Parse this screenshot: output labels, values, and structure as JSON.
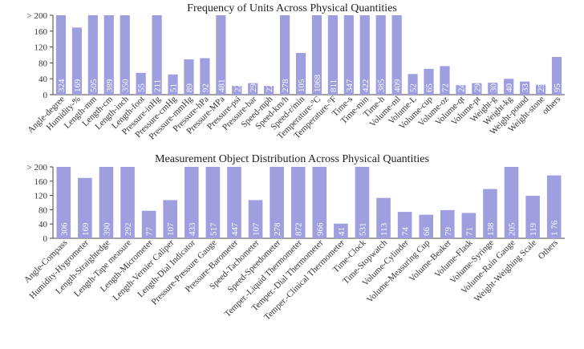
{
  "chart_data": [
    {
      "type": "bar",
      "title": "Frequency of Units Across Physical Quantities",
      "xlabel": "",
      "ylabel": "",
      "ylim": [
        0,
        200
      ],
      "yticks": [
        "0",
        "40",
        "80",
        "120",
        "160",
        "> 200"
      ],
      "grid": false,
      "color": "#9f9fe0",
      "categories": [
        "Angle-degree",
        "Humidity-%",
        "Length-mm",
        "Length-cm",
        "Length-inch",
        "Length-foot",
        "Pressure-inHg",
        "Pressure-cmHg",
        "Pressure-mmHg",
        "Pressure-hPa",
        "Pressure-MPa",
        "Pressure-psi",
        "Pressure-bar",
        "Speed-mph",
        "Speed-km/h",
        "Speed-r/min",
        "Temperature-°C",
        "Temperature-°F",
        "Time-s",
        "Time-min",
        "Time-h",
        "Volume-ml",
        "Volume-L",
        "Volume-cup",
        "Volume-oz",
        "Volume-qt",
        "Volume-pt",
        "Weight-g",
        "Weight-kg",
        "Weight-pound",
        "Weight-stone",
        "others"
      ],
      "values": [
        324,
        169,
        505,
        389,
        350,
        55,
        211,
        51,
        89,
        92,
        481,
        22,
        29,
        22,
        278,
        105,
        1068,
        811,
        347,
        422,
        385,
        409,
        52,
        65,
        72,
        24,
        29,
        30,
        40,
        33,
        25,
        95
      ],
      "value_labels": [
        "324",
        "169",
        "505",
        "389",
        "350",
        "55",
        "211",
        "51",
        "89",
        "92",
        "481",
        "22",
        "29",
        "22",
        "278",
        "105",
        "1068",
        "811",
        "347",
        "422",
        "385",
        "409",
        "52",
        "65",
        "72",
        "24",
        "29",
        "30",
        "40",
        "33",
        "25",
        "95"
      ]
    },
    {
      "type": "bar",
      "title": "Measurement Object Distribution Across Physical Quantities",
      "xlabel": "",
      "ylabel": "",
      "ylim": [
        0,
        200
      ],
      "yticks": [
        "0",
        "40",
        "80",
        "120",
        "160",
        "> 200"
      ],
      "grid": false,
      "color": "#9f9fe0",
      "categories": [
        "Angle-Compass",
        "Humidity-Hygrometer",
        "Length-Straightedge",
        "Length-Tape measure",
        "Length-Micrometer",
        "Length-Vernier Caliper",
        "Length-Dial Indicator",
        "Pressure-Pressure Gauge",
        "Pressure-Barometer",
        "Speed-Tachometer",
        "Speed-Speedometer",
        "Temper.-Liquid Thermometer",
        "Temper.-Dial Thermometer",
        "Temper.-Clinical Thermometer",
        "Time-Clock",
        "Time-Stopwatch",
        "Volume-Cylinder",
        "Volume-Measuring Cup",
        "Volume-Beaker",
        "Volume-Flask",
        "Volume-Syringe",
        "Volume-Rain Gauge",
        "Weight-Weighing Scale",
        "Others"
      ],
      "values": [
        306,
        169,
        390,
        292,
        77,
        107,
        433,
        517,
        447,
        107,
        278,
        872,
        966,
        41,
        531,
        113,
        74,
        66,
        79,
        71,
        138,
        205,
        119,
        176
      ],
      "value_labels": [
        "306",
        "169",
        "390",
        "292",
        "77",
        "107",
        "433",
        "517",
        "447",
        "107",
        "278",
        "872",
        "966",
        "41",
        "531",
        "113",
        "74",
        "66",
        "79",
        "71",
        "138",
        "205",
        "119",
        "1 76"
      ]
    }
  ]
}
